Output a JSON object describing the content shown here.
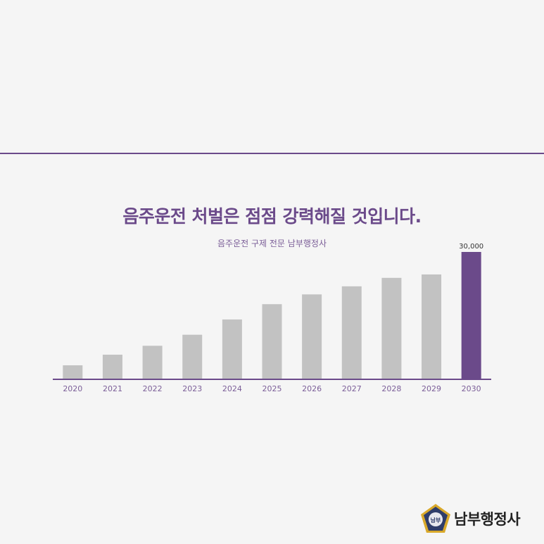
{
  "title": "음주운전 처벌은 점점 강력해질 것입니다.",
  "subtitle": "음주운전 구제 전문 남부행정사",
  "brand": {
    "name": "남부행정사",
    "emblem_text": "남부"
  },
  "colors": {
    "accent": "#6b4a8a",
    "bar": "#c2c2c2",
    "axis": "#6b4a8a",
    "label": "#7b5e98"
  },
  "chart_data": {
    "type": "bar",
    "categories": [
      "2020",
      "2021",
      "2022",
      "2023",
      "2024",
      "2025",
      "2026",
      "2027",
      "2028",
      "2029",
      "2030"
    ],
    "values": [
      3300,
      5800,
      7900,
      10500,
      14100,
      17700,
      20000,
      21900,
      23900,
      24700,
      30000
    ],
    "data_labels": {
      "2030": "30,000"
    },
    "highlight": "2030",
    "title": "",
    "xlabel": "",
    "ylabel": "",
    "ylim": [
      0,
      30000
    ],
    "grid": false,
    "legend": "none"
  }
}
